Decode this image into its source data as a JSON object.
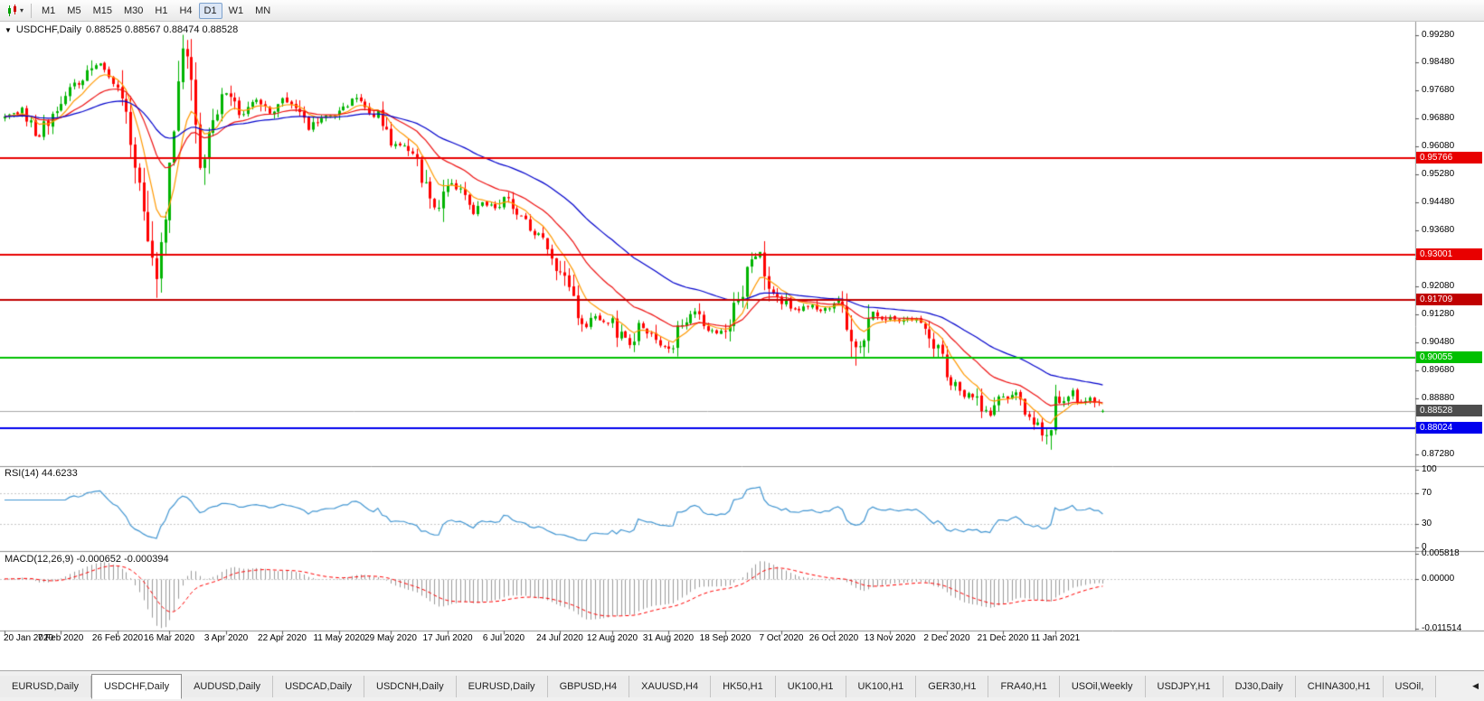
{
  "toolbar": {
    "chart_type_icon": "candlestick-chart-icon",
    "dropdown_icon": "chevron-down-icon",
    "timeframes": [
      {
        "label": "M1",
        "active": false
      },
      {
        "label": "M5",
        "active": false
      },
      {
        "label": "M15",
        "active": false
      },
      {
        "label": "M30",
        "active": false
      },
      {
        "label": "H1",
        "active": false
      },
      {
        "label": "H4",
        "active": false
      },
      {
        "label": "D1",
        "active": true
      },
      {
        "label": "W1",
        "active": false
      },
      {
        "label": "MN",
        "active": false
      }
    ]
  },
  "chart_header": {
    "symbol": "USDCHF,Daily",
    "ohlc": "0.88525 0.88567 0.88474 0.88528"
  },
  "price_axis_labels": [
    "0.99280",
    "0.98480",
    "0.97680",
    "0.96880",
    "0.96080",
    "0.95280",
    "0.94480",
    "0.93680",
    "0.92880",
    "0.92080",
    "0.91280",
    "0.90480",
    "0.89680",
    "0.88880",
    "0.88080",
    "0.87280"
  ],
  "rsi_panel": {
    "title": "RSI(14) 44.6233",
    "axis_labels": [
      {
        "value": 100,
        "label": "100"
      },
      {
        "value": 70,
        "label": "70"
      },
      {
        "value": 30,
        "label": "30"
      },
      {
        "value": 0,
        "label": "0"
      }
    ],
    "level_lines": [
      70,
      30
    ]
  },
  "macd_panel": {
    "title": "MACD(12,26,9) -0.000652 -0.000394",
    "axis_labels": [
      {
        "value": 0.005818,
        "label": "0.005818"
      },
      {
        "value": 0,
        "label": "0.00000"
      },
      {
        "value": -0.011514,
        "label": "-0.011514"
      }
    ]
  },
  "date_axis": [
    "20 Jan 2020",
    "7 Feb 2020",
    "26 Feb 2020",
    "16 Mar 2020",
    "3 Apr 2020",
    "22 Apr 2020",
    "11 May 2020",
    "29 May 2020",
    "17 Jun 2020",
    "6 Jul 2020",
    "24 Jul 2020",
    "12 Aug 2020",
    "31 Aug 2020",
    "18 Sep 2020",
    "7 Oct 2020",
    "26 Oct 2020",
    "13 Nov 2020",
    "2 Dec 2020",
    "21 Dec 2020",
    "11 Jan 2021"
  ],
  "tabs": [
    {
      "label": "EURUSD,Daily",
      "active": false
    },
    {
      "label": "USDCHF,Daily",
      "active": true
    },
    {
      "label": "AUDUSD,Daily",
      "active": false
    },
    {
      "label": "USDCAD,Daily",
      "active": false
    },
    {
      "label": "USDCNH,Daily",
      "active": false
    },
    {
      "label": "EURUSD,Daily",
      "active": false
    },
    {
      "label": "GBPUSD,H4",
      "active": false
    },
    {
      "label": "XAUUSD,H4",
      "active": false
    },
    {
      "label": "HK50,H1",
      "active": false
    },
    {
      "label": "UK100,H1",
      "active": false
    },
    {
      "label": "UK100,H1",
      "active": false
    },
    {
      "label": "GER30,H1",
      "active": false
    },
    {
      "label": "FRA40,H1",
      "active": false
    },
    {
      "label": "USOil,Weekly",
      "active": false
    },
    {
      "label": "USDJPY,H1",
      "active": false
    },
    {
      "label": "DJ30,Daily",
      "active": false
    },
    {
      "label": "CHINA300,H1",
      "active": false
    },
    {
      "label": "USOil,",
      "active": false
    }
  ],
  "tab_scroll_left_icon": "triangle-left-icon",
  "chart_data": {
    "type": "candlestick",
    "symbol": "USDCHF",
    "timeframe": "Daily",
    "title": "USDCHF,Daily",
    "last_ohlc": {
      "open": 0.88525,
      "high": 0.88567,
      "low": 0.88474,
      "close": 0.88528
    },
    "y_min": 0.87,
    "y_max": 0.995,
    "candle_count": 254,
    "seed": 20210114,
    "waypoints": [
      [
        0,
        0.969
      ],
      [
        4,
        0.9715
      ],
      [
        8,
        0.9638
      ],
      [
        13,
        0.9748
      ],
      [
        18,
        0.98
      ],
      [
        21,
        0.9846
      ],
      [
        24,
        0.9818
      ],
      [
        27,
        0.9775
      ],
      [
        30,
        0.956
      ],
      [
        33,
        0.931
      ],
      [
        35,
        0.9198
      ],
      [
        37,
        0.9445
      ],
      [
        39,
        0.9685
      ],
      [
        41,
        0.9888
      ],
      [
        43,
        0.9755
      ],
      [
        45,
        0.956
      ],
      [
        47,
        0.9645
      ],
      [
        49,
        0.972
      ],
      [
        51,
        0.9758
      ],
      [
        54,
        0.97
      ],
      [
        58,
        0.9742
      ],
      [
        61,
        0.97
      ],
      [
        64,
        0.9752
      ],
      [
        67,
        0.9722
      ],
      [
        70,
        0.9662
      ],
      [
        73,
        0.969
      ],
      [
        77,
        0.9712
      ],
      [
        80,
        0.9748
      ],
      [
        83,
        0.9712
      ],
      [
        86,
        0.9695
      ],
      [
        89,
        0.9622
      ],
      [
        92,
        0.9606
      ],
      [
        95,
        0.9556
      ],
      [
        98,
        0.9448
      ],
      [
        100,
        0.9436
      ],
      [
        102,
        0.9508
      ],
      [
        105,
        0.9478
      ],
      [
        108,
        0.9422
      ],
      [
        110,
        0.9448
      ],
      [
        113,
        0.9436
      ],
      [
        115,
        0.9464
      ],
      [
        118,
        0.9415
      ],
      [
        121,
        0.938
      ],
      [
        124,
        0.933
      ],
      [
        127,
        0.9272
      ],
      [
        129,
        0.9222
      ],
      [
        131,
        0.9158
      ],
      [
        134,
        0.9096
      ],
      [
        136,
        0.9124
      ],
      [
        138,
        0.9106
      ],
      [
        140,
        0.9114
      ],
      [
        142,
        0.9062
      ],
      [
        144,
        0.9046
      ],
      [
        146,
        0.9098
      ],
      [
        148,
        0.9086
      ],
      [
        151,
        0.9036
      ],
      [
        153,
        0.9026
      ],
      [
        155,
        0.9088
      ],
      [
        157,
        0.9118
      ],
      [
        159,
        0.9134
      ],
      [
        161,
        0.9092
      ],
      [
        164,
        0.9076
      ],
      [
        166,
        0.9094
      ],
      [
        168,
        0.914
      ],
      [
        170,
        0.9206
      ],
      [
        172,
        0.9278
      ],
      [
        174,
        0.9294
      ],
      [
        176,
        0.9222
      ],
      [
        178,
        0.9182
      ],
      [
        180,
        0.916
      ],
      [
        182,
        0.9136
      ],
      [
        184,
        0.9146
      ],
      [
        186,
        0.9154
      ],
      [
        188,
        0.9142
      ],
      [
        190,
        0.915
      ],
      [
        192,
        0.9164
      ],
      [
        194,
        0.9116
      ],
      [
        196,
        0.9036
      ],
      [
        198,
        0.9062
      ],
      [
        200,
        0.9124
      ],
      [
        202,
        0.9112
      ],
      [
        204,
        0.9124
      ],
      [
        206,
        0.9106
      ],
      [
        208,
        0.9112
      ],
      [
        210,
        0.9116
      ],
      [
        212,
        0.9096
      ],
      [
        214,
        0.9042
      ],
      [
        216,
        0.8986
      ],
      [
        217,
        0.8942
      ],
      [
        219,
        0.8922
      ],
      [
        221,
        0.8896
      ],
      [
        223,
        0.89
      ],
      [
        225,
        0.8866
      ],
      [
        227,
        0.8846
      ],
      [
        229,
        0.888
      ],
      [
        231,
        0.8896
      ],
      [
        233,
        0.8906
      ],
      [
        235,
        0.8862
      ],
      [
        237,
        0.8826
      ],
      [
        239,
        0.8792
      ],
      [
        240,
        0.8772
      ],
      [
        241,
        0.8822
      ],
      [
        242,
        0.887
      ],
      [
        244,
        0.8892
      ],
      [
        246,
        0.8906
      ],
      [
        248,
        0.8876
      ],
      [
        250,
        0.8892
      ],
      [
        252,
        0.8862
      ],
      [
        253,
        0.88528
      ]
    ],
    "extremes": [
      {
        "i": 41,
        "h": 0.9928
      },
      {
        "i": 35,
        "l": 0.9176
      },
      {
        "i": 174,
        "h": 0.9301
      },
      {
        "i": 196,
        "l": 0.8982
      },
      {
        "i": 240,
        "l": 0.8757
      }
    ],
    "horizontal_lines": [
      {
        "price": 0.95766,
        "label": "0.95766",
        "color": "#e80000"
      },
      {
        "price": 0.93001,
        "label": "0.93001",
        "color": "#e80000"
      },
      {
        "price": 0.91709,
        "label": "0.91709",
        "color": "#c00000"
      },
      {
        "price": 0.90055,
        "label": "0.90055",
        "color": "#00c000"
      },
      {
        "price": 0.88024,
        "label": "0.88024",
        "color": "#0000ee"
      }
    ],
    "current_price": {
      "value": 0.88528,
      "label": "0.88528",
      "line_color": "#a8a8a8",
      "badge_color": "#4d4d4d"
    },
    "moving_averages": [
      {
        "period": 8,
        "color": "#ff9900"
      },
      {
        "period": 21,
        "color": "#ee1111"
      },
      {
        "period": 50,
        "color": "#0000cc"
      }
    ],
    "candle_colors": {
      "up": "#00b400",
      "down": "#ff0000"
    },
    "rsi": {
      "period": 14,
      "color": "#4296d2",
      "scale_min": 0,
      "scale_max": 100,
      "current": 44.6233
    },
    "macd": {
      "fast": 12,
      "slow": 26,
      "signal": 9,
      "hist_color": "#9a9a9a",
      "signal_color": "#ff0000",
      "scale_max": 0.005818,
      "scale_min": -0.011514,
      "current_macd": -0.000652,
      "current_signal": -0.000394
    },
    "date_tick_indices": [
      0,
      13,
      26,
      38,
      51,
      64,
      77,
      89,
      102,
      115,
      128,
      140,
      153,
      166,
      179,
      191,
      204,
      217,
      230,
      242
    ]
  }
}
